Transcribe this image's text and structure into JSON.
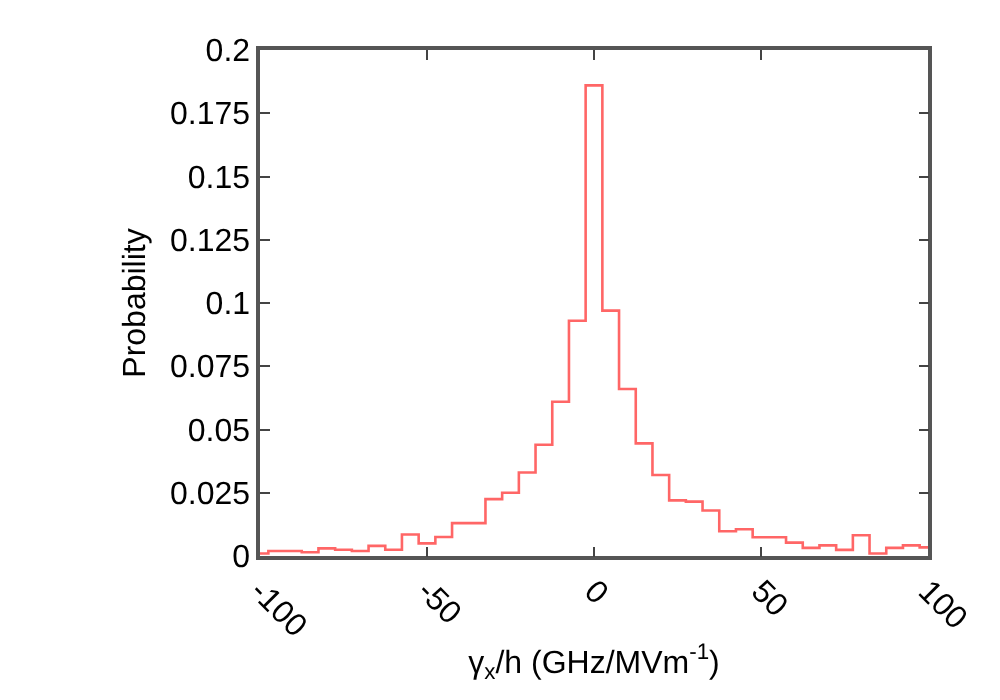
{
  "chart_data": {
    "type": "step",
    "xlabel": "γ$_{x}$/h (GHz/MVm$^{-1}$)",
    "ylabel": "Probability",
    "x": [
      -100,
      -95,
      -90,
      -85,
      -80,
      -75,
      -70,
      -65,
      -60,
      -55,
      -50,
      -45,
      -40,
      -35,
      -30,
      -25,
      -20,
      -15,
      -10,
      -5,
      0,
      5,
      10,
      15,
      20,
      25,
      30,
      35,
      40,
      45,
      50,
      55,
      60,
      65,
      70,
      75,
      80,
      85,
      90,
      95,
      100
    ],
    "series": [
      {
        "color": "#ff6666",
        "values": [
          0.001,
          0.002,
          0.002,
          0.0015,
          0.003,
          0.0025,
          0.002,
          0.004,
          0.0025,
          0.0085,
          0.005,
          0.0075,
          0.013,
          0.013,
          0.0225,
          0.025,
          0.033,
          0.044,
          0.061,
          0.093,
          0.186,
          0.097,
          0.066,
          0.0445,
          0.032,
          0.022,
          0.0215,
          0.018,
          0.0098,
          0.0106,
          0.0074,
          0.0074,
          0.0053,
          0.0032,
          0.0042,
          0.0024,
          0.0082,
          0.001,
          0.0032,
          0.0042,
          0.0034
        ]
      }
    ],
    "xlim": [
      -100,
      100
    ],
    "xticks": [
      -100,
      -50,
      0,
      50,
      100
    ],
    "ylim": [
      0,
      0.2
    ],
    "yticks": [
      0,
      0.025,
      0.05,
      0.075,
      0.1,
      0.125,
      0.15,
      0.175,
      0.2
    ]
  }
}
